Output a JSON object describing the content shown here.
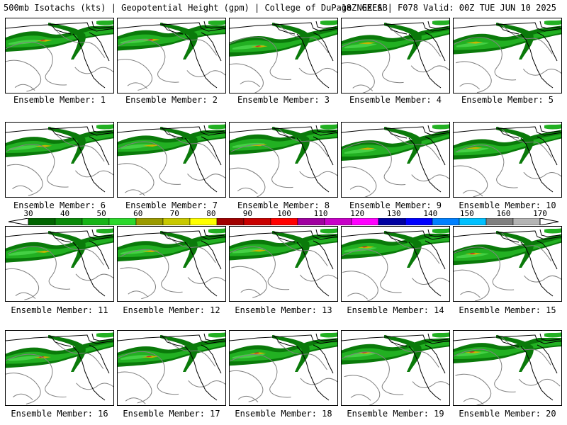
{
  "header": {
    "title_left": "500mb Isotachs (kts) | Geopotential Height (gpm) | College of DuPage NEXLAB",
    "title_right": "18Z GEFS | F078 Valid: 00Z TUE JUN 10 2025"
  },
  "colorbar": {
    "tick_labels": [
      "30",
      "40",
      "50",
      "60",
      "70",
      "80",
      "90",
      "100",
      "110",
      "120",
      "130",
      "140",
      "150",
      "160",
      "170"
    ],
    "colors": [
      "#006400",
      "#0a8a0a",
      "#18b418",
      "#2cd82c",
      "#9a9a00",
      "#c8c800",
      "#ffff00",
      "#a00000",
      "#c80000",
      "#ff0000",
      "#a000a0",
      "#c800c8",
      "#ff00ff",
      "#0000a0",
      "#0000ff",
      "#0080ff",
      "#00c0ff",
      "#808080",
      "#b4b4b4"
    ]
  },
  "map_colors": {
    "wind_dark": "#0a7a0a",
    "wind_mid": "#22b022",
    "wind_light": "#44d044",
    "wind_core": "#c8b400",
    "wind_max": "#c82828",
    "height_contour": "#808080",
    "boundary": "#000000"
  },
  "members": [
    {
      "label": "Ensemble Member: 1"
    },
    {
      "label": "Ensemble Member: 2"
    },
    {
      "label": "Ensemble Member: 3"
    },
    {
      "label": "Ensemble Member: 4"
    },
    {
      "label": "Ensemble Member: 5"
    },
    {
      "label": "Ensemble Member: 6"
    },
    {
      "label": "Ensemble Member: 7"
    },
    {
      "label": "Ensemble Member: 8"
    },
    {
      "label": "Ensemble Member: 9"
    },
    {
      "label": "Ensemble Member: 10"
    },
    {
      "label": "Ensemble Member: 11"
    },
    {
      "label": "Ensemble Member: 12"
    },
    {
      "label": "Ensemble Member: 13"
    },
    {
      "label": "Ensemble Member: 14"
    },
    {
      "label": "Ensemble Member: 15"
    },
    {
      "label": "Ensemble Member: 16"
    },
    {
      "label": "Ensemble Member: 17"
    },
    {
      "label": "Ensemble Member: 18"
    },
    {
      "label": "Ensemble Member: 19"
    },
    {
      "label": "Ensemble Member: 20"
    }
  ]
}
